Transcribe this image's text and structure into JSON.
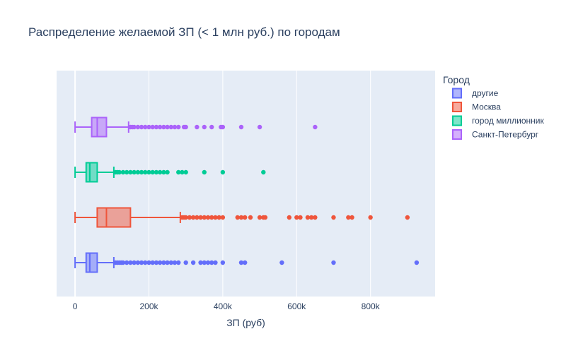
{
  "chart_data": {
    "type": "box",
    "orientation": "horizontal",
    "title": "Распределение желаемой ЗП (< 1 млн руб.) по городам",
    "xlabel": "ЗП (руб)",
    "ylabel": "",
    "xlim": [
      -50000,
      975000
    ],
    "x_ticks": [
      0,
      200000,
      400000,
      600000,
      800000
    ],
    "x_tick_labels": [
      "0",
      "200k",
      "400k",
      "600k",
      "800k"
    ],
    "grid": true,
    "legend": {
      "title": "Город",
      "placement": "top-right"
    },
    "series": [
      {
        "name": "другие",
        "color": "#636efa",
        "min": 0,
        "q1": 30000,
        "median": 40000,
        "q3": 60000,
        "upper_fence": 105000,
        "outliers": [
          110000,
          115000,
          120000,
          125000,
          130000,
          140000,
          150000,
          160000,
          170000,
          180000,
          190000,
          200000,
          210000,
          220000,
          230000,
          240000,
          250000,
          260000,
          270000,
          280000,
          300000,
          320000,
          340000,
          350000,
          360000,
          370000,
          380000,
          400000,
          450000,
          460000,
          560000,
          700000,
          925000
        ]
      },
      {
        "name": "Москва",
        "color": "#ef553b",
        "min": 0,
        "q1": 60000,
        "median": 85000,
        "q3": 150000,
        "upper_fence": 285000,
        "outliers": [
          290000,
          295000,
          300000,
          310000,
          320000,
          330000,
          340000,
          350000,
          360000,
          370000,
          380000,
          390000,
          400000,
          440000,
          450000,
          460000,
          475000,
          500000,
          510000,
          515000,
          580000,
          600000,
          610000,
          630000,
          640000,
          650000,
          700000,
          740000,
          750000,
          800000,
          900000
        ]
      },
      {
        "name": "город миллионник",
        "color": "#00cc96",
        "min": 0,
        "q1": 30000,
        "median": 40000,
        "q3": 60000,
        "upper_fence": 105000,
        "outliers": [
          110000,
          115000,
          120000,
          130000,
          140000,
          150000,
          160000,
          170000,
          180000,
          190000,
          200000,
          210000,
          220000,
          230000,
          240000,
          250000,
          280000,
          290000,
          300000,
          350000,
          400000,
          510000
        ]
      },
      {
        "name": "Санкт-Петербург",
        "color": "#ab63fa",
        "min": 0,
        "q1": 45000,
        "median": 60000,
        "q3": 85000,
        "upper_fence": 145000,
        "outliers": [
          150000,
          155000,
          160000,
          170000,
          180000,
          190000,
          200000,
          210000,
          220000,
          230000,
          240000,
          250000,
          260000,
          270000,
          280000,
          295000,
          300000,
          330000,
          350000,
          370000,
          395000,
          400000,
          450000,
          500000,
          650000
        ]
      }
    ]
  }
}
